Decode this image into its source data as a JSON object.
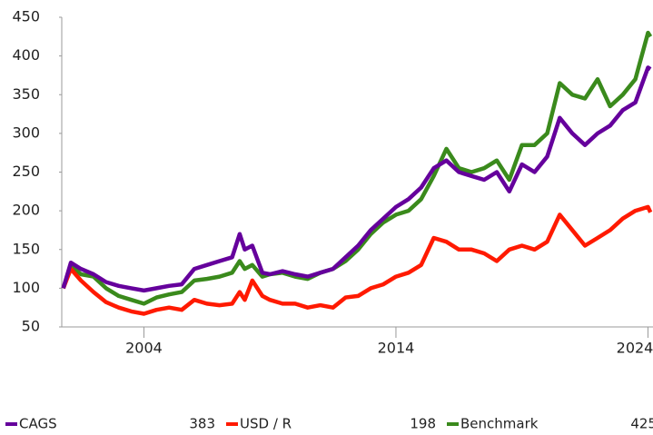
{
  "chart_data": {
    "type": "line",
    "x": [
      2000.8,
      2001.1,
      2001.5,
      2002,
      2002.5,
      2003,
      2003.5,
      2004,
      2004.5,
      2005,
      2005.5,
      2006,
      2006.5,
      2007,
      2007.5,
      2007.8,
      2008,
      2008.3,
      2008.7,
      2009,
      2009.5,
      2010,
      2010.5,
      2011,
      2011.5,
      2012,
      2012.5,
      2013,
      2013.5,
      2014,
      2014.5,
      2015,
      2015.5,
      2016,
      2016.5,
      2017,
      2017.5,
      2018,
      2018.5,
      2019,
      2019.5,
      2020,
      2020.5,
      2021,
      2021.5,
      2022,
      2022.5,
      2023,
      2023.5,
      2024,
      2024.1
    ],
    "series": [
      {
        "name": "Benchmark",
        "color": "#3a8a1c",
        "latest": 425,
        "values": [
          100,
          130,
          118,
          115,
          100,
          90,
          85,
          80,
          88,
          92,
          95,
          110,
          112,
          115,
          120,
          135,
          125,
          130,
          115,
          118,
          120,
          115,
          112,
          120,
          125,
          135,
          150,
          170,
          185,
          195,
          200,
          215,
          245,
          280,
          255,
          250,
          255,
          265,
          240,
          285,
          285,
          300,
          365,
          350,
          345,
          370,
          335,
          350,
          370,
          430,
          425
        ]
      },
      {
        "name": "USD / R",
        "color": "#ff1a00",
        "latest": 198,
        "values": [
          100,
          125,
          110,
          95,
          82,
          75,
          70,
          67,
          72,
          75,
          72,
          85,
          80,
          78,
          80,
          95,
          85,
          110,
          90,
          85,
          80,
          80,
          75,
          78,
          75,
          88,
          90,
          100,
          105,
          115,
          120,
          130,
          165,
          160,
          150,
          150,
          145,
          135,
          150,
          155,
          150,
          160,
          195,
          175,
          155,
          165,
          175,
          190,
          200,
          205,
          198
        ]
      },
      {
        "name": "CAGS",
        "color": "#65009c",
        "latest": 383,
        "values": [
          100,
          133,
          125,
          118,
          108,
          103,
          100,
          97,
          100,
          103,
          105,
          125,
          130,
          135,
          140,
          170,
          150,
          155,
          120,
          118,
          122,
          118,
          115,
          120,
          125,
          140,
          155,
          175,
          190,
          205,
          215,
          230,
          255,
          265,
          250,
          245,
          240,
          250,
          225,
          260,
          250,
          270,
          320,
          300,
          285,
          300,
          310,
          330,
          340,
          385,
          383
        ]
      }
    ],
    "legend_order": [
      2,
      1,
      0
    ],
    "xlim": [
      2000.74,
      2024.2
    ],
    "xticks": [
      2004,
      2014,
      2024
    ],
    "ylim": [
      50,
      450
    ],
    "yticks": [
      50,
      100,
      150,
      200,
      250,
      300,
      350,
      400,
      450
    ]
  }
}
